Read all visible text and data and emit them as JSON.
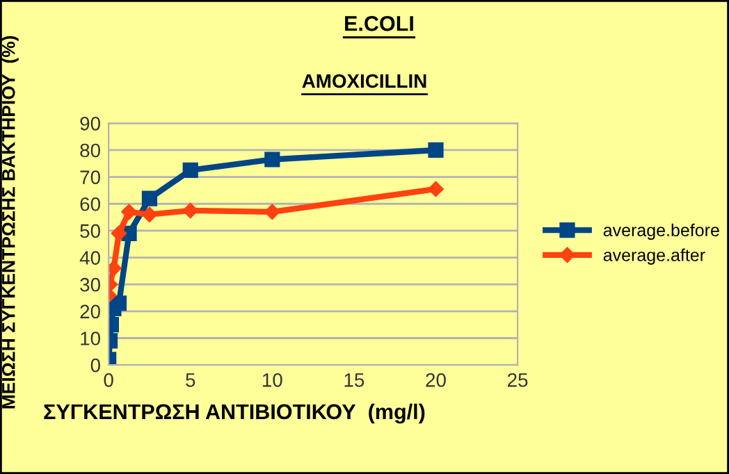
{
  "chart_data": {
    "type": "line",
    "title": "E.COLI",
    "subtitle": "AMOXICILLIN",
    "xlabel": "ΣΥΓΚΕΝΤΡΩΣΗ ΑΝΤΙΒΙΟΤΙΚΟΥ  (mg/l)",
    "ylabel": "ΜΕΙΩΣΗ ΣΥΓΚΕΝΤΡΩΣΗΣ ΒΑΚΤΗΡΙΟΥ  (%)",
    "series": [
      {
        "name": "average.before",
        "color": "#004586",
        "marker": "square",
        "x": [
          0,
          0.08,
          0.16,
          0.31,
          0.63,
          1.25,
          2.5,
          5,
          10,
          20
        ],
        "values": [
          2,
          9,
          15,
          21,
          23,
          49,
          62,
          72.5,
          76.5,
          80
        ]
      },
      {
        "name": "average.after",
        "color": "#ff420e",
        "marker": "diamond",
        "x": [
          0,
          0.08,
          0.31,
          0.63,
          1.25,
          2.5,
          5,
          10,
          20
        ],
        "values": [
          26,
          30,
          36,
          49,
          57,
          56,
          57.5,
          57,
          65.5
        ]
      }
    ],
    "xlim": [
      0,
      25
    ],
    "xticks": [
      0,
      5,
      10,
      15,
      20,
      25
    ],
    "ylim": [
      0,
      90
    ],
    "yticks": [
      0,
      10,
      20,
      30,
      40,
      50,
      60,
      70,
      80,
      90
    ],
    "grid": "y",
    "legend": "right"
  }
}
